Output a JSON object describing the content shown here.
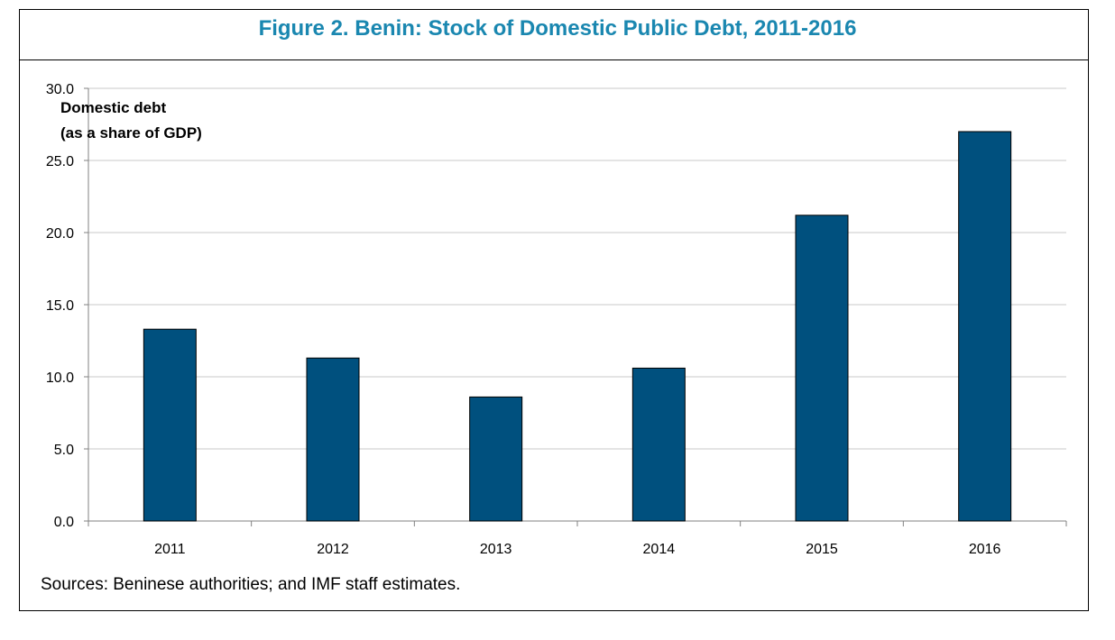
{
  "figure": {
    "title": "Figure 2. Benin: Stock of Domestic Public Debt, 2011-2016",
    "subtitle_line1": "Domestic debt",
    "subtitle_line2": "(as a share of GDP)",
    "source": "Sources: Beninese authorities; and IMF staff estimates."
  },
  "colors": {
    "title": "#1a87b0",
    "bar_fill": "#00507e",
    "gridline": "#c8c8c8"
  },
  "chart_data": {
    "type": "bar",
    "title": "Figure 2. Benin: Stock of Domestic Public Debt, 2011-2016",
    "subtitle": "Domestic debt (as a share of GDP)",
    "xlabel": "",
    "ylabel": "",
    "categories": [
      "2011",
      "2012",
      "2013",
      "2014",
      "2015",
      "2016"
    ],
    "series": [
      {
        "values": [
          13.3,
          11.3,
          8.6,
          10.6,
          21.2,
          27.0
        ]
      }
    ],
    "ylim": [
      0,
      30
    ],
    "yticks": [
      "0.0",
      "5.0",
      "10.0",
      "15.0",
      "20.0",
      "25.0",
      "30.0"
    ],
    "grid": true,
    "legend": "none"
  }
}
